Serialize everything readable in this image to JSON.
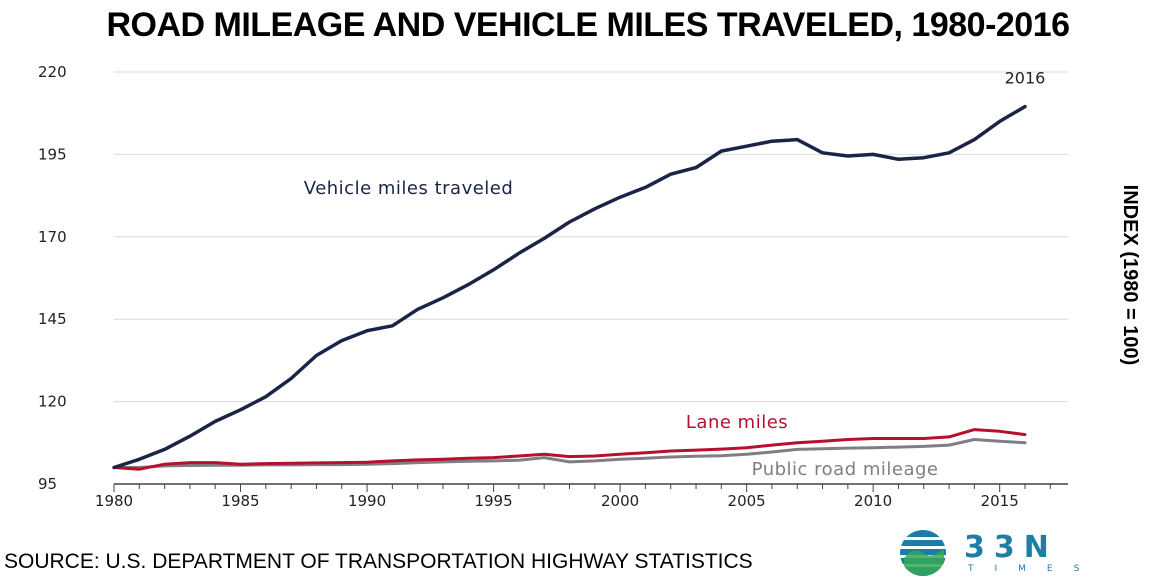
{
  "title": "ROAD MILEAGE AND VEHICLE MILES TRAVELED, 1980-2016",
  "source": "SOURCE: U.S. DEPARTMENT OF TRANSPORTATION HIGHWAY STATISTICS",
  "logo": {
    "word": "33N",
    "sub": "TIMES",
    "color": "#1f7ea6",
    "icon": "globe-icon"
  },
  "chart_data": {
    "type": "line",
    "ylabel": "INDEX (1980 = 100)",
    "xlim": [
      1980,
      2017.7
    ],
    "ylim": [
      95,
      220
    ],
    "yticks": [
      95,
      120,
      145,
      170,
      195,
      220
    ],
    "xticks": [
      1980,
      1985,
      1990,
      1995,
      2000,
      2005,
      2010,
      2015
    ],
    "grid": true,
    "x": [
      1980,
      1981,
      1982,
      1983,
      1984,
      1985,
      1986,
      1987,
      1988,
      1989,
      1990,
      1991,
      1992,
      1993,
      1994,
      1995,
      1996,
      1997,
      1998,
      1999,
      2000,
      2001,
      2002,
      2003,
      2004,
      2005,
      2006,
      2007,
      2008,
      2009,
      2010,
      2011,
      2012,
      2013,
      2014,
      2015,
      2016
    ],
    "series": [
      {
        "name": "Vehicle miles traveled",
        "color": "#1b2447",
        "label_year": 1987.5,
        "label_value": 183,
        "values": [
          100,
          102.5,
          105.5,
          109.5,
          114,
          117.5,
          121.5,
          127,
          134,
          138.5,
          141.5,
          143,
          148,
          151.5,
          155.5,
          160,
          165,
          169.5,
          174.5,
          178.5,
          182,
          185,
          189,
          191,
          196,
          197.5,
          199,
          199.5,
          195.5,
          194.5,
          195,
          193.5,
          194,
          195.5,
          199.5,
          205,
          209.5
        ]
      },
      {
        "name": "Lane miles",
        "color": "#b5102e",
        "label_year": 2002.6,
        "label_value": 112,
        "values": [
          100,
          99.5,
          101,
          101.5,
          101.5,
          101,
          101.2,
          101.3,
          101.4,
          101.5,
          101.6,
          102,
          102.3,
          102.5,
          102.8,
          103,
          103.5,
          104,
          103.3,
          103.5,
          104,
          104.5,
          105,
          105.3,
          105.6,
          106,
          106.8,
          107.5,
          108,
          108.5,
          108.8,
          108.8,
          108.8,
          109.3,
          111.5,
          111,
          110
        ]
      },
      {
        "name": "Public road mileage",
        "color": "#7e7f85",
        "label_year": 2005.2,
        "label_value": 97.8,
        "values": [
          100,
          100,
          100.5,
          100.6,
          100.7,
          100.7,
          100.8,
          100.8,
          100.9,
          100.9,
          101,
          101.2,
          101.5,
          101.7,
          101.9,
          102,
          102.2,
          103,
          101.7,
          102,
          102.5,
          102.8,
          103.2,
          103.4,
          103.6,
          104,
          104.7,
          105.5,
          105.7,
          105.9,
          106,
          106.2,
          106.4,
          106.8,
          108.5,
          108,
          107.5
        ]
      }
    ],
    "annotations": [
      {
        "text": "2016",
        "x": 2016,
        "y": 216.5
      }
    ]
  }
}
